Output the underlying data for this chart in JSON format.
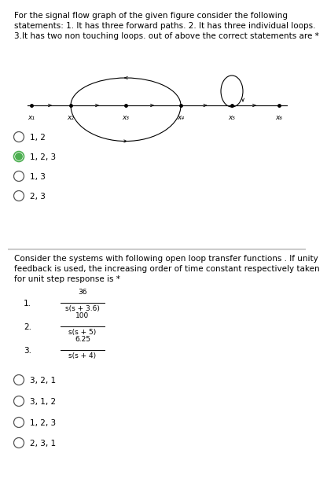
{
  "bg_color": "#ffffff",
  "q1_bg": "#ffffff",
  "q2_bg": "#f5f5f5",
  "separator_color": "#cccccc",
  "q1_text_lines": [
    "For the signal flow graph of the given figure consider the following",
    "statements: 1. It has three forward paths. 2. It has three individual loops.",
    "3.It has two non touching loops. out of above the correct statements are *"
  ],
  "q1_options": [
    "1, 2",
    "1, 2, 3",
    "1, 3",
    "2, 3"
  ],
  "q1_selected": 1,
  "q2_text_lines": [
    "Consider the systems with following open loop transfer functions . If unity",
    "feedback is used, the increasing order of time constant respectively taken",
    "for unit step response is *"
  ],
  "q2_tf_labels": [
    "1.",
    "2.",
    "3."
  ],
  "q2_tf_numerators": [
    "36",
    "100",
    "6.25"
  ],
  "q2_tf_denominators": [
    "s(s + 3.6)",
    "s(s + 5)",
    "s(s + 4)"
  ],
  "q2_options": [
    "3, 2, 1",
    "3, 1, 2",
    "1, 2, 3",
    "2, 3, 1"
  ],
  "q2_selected": -1,
  "node_labels": [
    "x₁",
    "x₂",
    "x₃",
    "x₄",
    "x₅",
    "x₆"
  ],
  "text_color": "#000000",
  "radio_color_fill": "#4caf50",
  "radio_color_border": "#4caf50",
  "font_size_body": 7.5,
  "font_size_node": 6.5,
  "font_size_tf": 6.5
}
